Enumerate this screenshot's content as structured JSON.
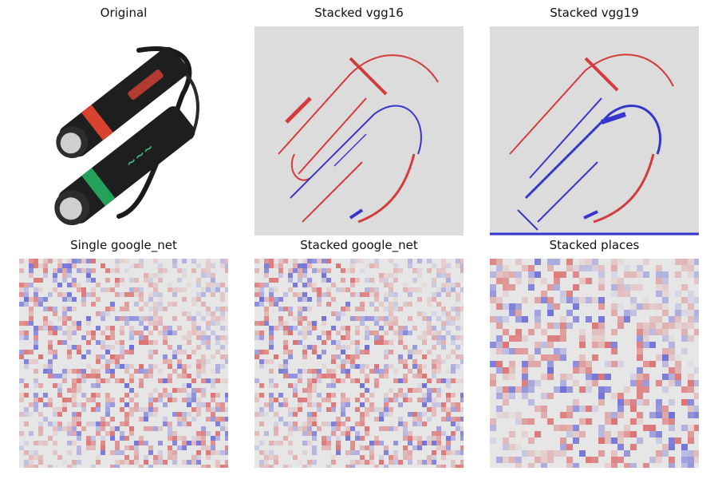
{
  "panels": [
    {
      "title": "Original"
    },
    {
      "title": "Stacked vgg16"
    },
    {
      "title": "Stacked vgg19"
    },
    {
      "title": "Single google_net"
    },
    {
      "title": "Stacked google_net"
    },
    {
      "title": "Stacked places"
    }
  ],
  "colors": {
    "background_gray": "#dcdcdc",
    "positive_red": "#d62020",
    "negative_blue": "#1a1acc",
    "flashlight_body": "#1e1e1e",
    "red_band": "#d8432f",
    "green_band": "#23a05a",
    "logo_green": "#3fb37a"
  },
  "icons": [
    "flashlight-image",
    "saliency-heatmap"
  ]
}
